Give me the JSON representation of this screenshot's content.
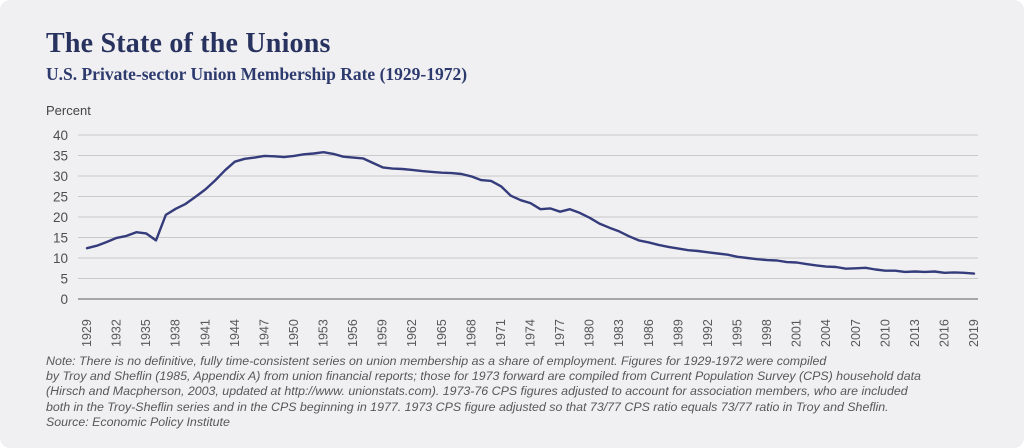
{
  "header": {
    "title": "The State of the Unions",
    "subtitle": "U.S. Private-sector Union Membership Rate (1929-1972)"
  },
  "note": {
    "lines": [
      "Note: There is no definitive, fully time-consistent series on union membership as a share of employment. Figures for 1929-1972 were compiled",
      "by Troy and Sheflin (1985, Appendix A) from union financial reports; those for 1973 forward are compiled from Current Population Survey (CPS) household data",
      "(Hirsch and Macpherson, 2003, updated at http://www. unionstats.com). 1973-76 CPS figures adjusted to account for association members, who are included",
      "both in the Troy-Sheflin series and in the CPS beginning in 1977. 1973 CPS figure adjusted so that 73/77 CPS ratio equals 73/77 ratio in Troy and Sheflin."
    ],
    "source": "Source: Economic Policy Institute"
  },
  "chart_data": {
    "type": "line",
    "title": "The State of the Unions",
    "subtitle": "U.S. Private-sector Union Membership Rate (1929-1972)",
    "ylabel": "Percent",
    "xlabel": "",
    "ylim": [
      0,
      40
    ],
    "yticks": [
      0,
      5,
      10,
      15,
      20,
      25,
      30,
      35,
      40
    ],
    "xlim": [
      1929,
      2019
    ],
    "xticks": [
      1929,
      1932,
      1935,
      1938,
      1941,
      1944,
      1947,
      1950,
      1953,
      1956,
      1959,
      1962,
      1965,
      1968,
      1971,
      1974,
      1977,
      1980,
      1983,
      1986,
      1989,
      1992,
      1995,
      1998,
      2001,
      2004,
      2007,
      2010,
      2013,
      2016,
      2019
    ],
    "x_start": 1929,
    "grid": true,
    "grid_color": "#c9c9ca",
    "axis_color": "#8e8e90",
    "legend": "none",
    "series": [
      {
        "name": "U.S. private-sector union membership rate (percent)",
        "color": "#353c7c",
        "values": [
          12.4,
          13.0,
          13.9,
          14.9,
          15.4,
          16.3,
          16.0,
          14.3,
          20.5,
          22.0,
          23.2,
          24.9,
          26.7,
          28.9,
          31.4,
          33.5,
          34.2,
          34.5,
          34.9,
          34.8,
          34.6,
          34.9,
          35.3,
          35.5,
          35.8,
          35.4,
          34.7,
          34.5,
          34.3,
          33.2,
          32.1,
          31.8,
          31.7,
          31.5,
          31.2,
          31.0,
          30.8,
          30.7,
          30.5,
          29.9,
          29.0,
          28.8,
          27.5,
          25.2,
          24.1,
          23.4,
          21.9,
          22.1,
          21.3,
          21.9,
          21.0,
          19.8,
          18.4,
          17.4,
          16.5,
          15.3,
          14.3,
          13.8,
          13.2,
          12.7,
          12.3,
          11.9,
          11.7,
          11.4,
          11.1,
          10.8,
          10.3,
          10.0,
          9.7,
          9.5,
          9.4,
          9.0,
          8.9,
          8.5,
          8.2,
          7.9,
          7.8,
          7.4,
          7.5,
          7.6,
          7.2,
          6.9,
          6.9,
          6.6,
          6.7,
          6.6,
          6.7,
          6.4,
          6.5,
          6.4,
          6.2
        ]
      }
    ]
  }
}
